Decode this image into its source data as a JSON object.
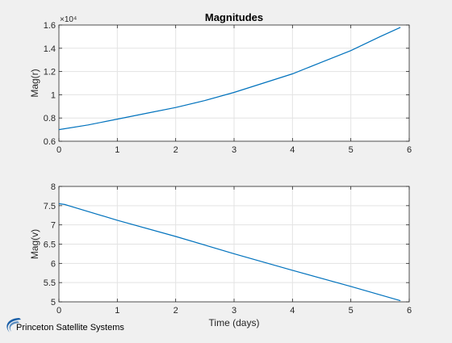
{
  "window": {
    "title": "Magnitudes"
  },
  "branding": {
    "name": "Princeton Satellite Systems",
    "logo_color": "#1a5fa8"
  },
  "chart_data": [
    {
      "type": "line",
      "title": "Magnitudes",
      "xlabel": "",
      "ylabel": "Mag(r)",
      "xlim": [
        0,
        6
      ],
      "ylim": [
        0.6,
        1.6
      ],
      "y_exponent_label": "×10⁴",
      "xticks": [
        0,
        1,
        2,
        3,
        4,
        5,
        6
      ],
      "xtick_labels": [
        "0",
        "1",
        "2",
        "3",
        "4",
        "5",
        "6"
      ],
      "yticks": [
        0.6,
        0.8,
        1.0,
        1.2,
        1.4,
        1.6
      ],
      "ytick_labels": [
        "0.6",
        "0.8",
        "1",
        "1.2",
        "1.4",
        "1.6"
      ],
      "grid": true,
      "line_color": "#0072bd",
      "series": [
        {
          "x": [
            0,
            0.5,
            1,
            1.5,
            2,
            2.5,
            3,
            3.5,
            4,
            4.5,
            5,
            5.5,
            5.85
          ],
          "y": [
            0.7,
            0.74,
            0.79,
            0.84,
            0.89,
            0.95,
            1.02,
            1.1,
            1.18,
            1.28,
            1.38,
            1.5,
            1.58
          ]
        }
      ]
    },
    {
      "type": "line",
      "title": "",
      "xlabel": "Time (days)",
      "ylabel": "Mag(v)",
      "xlim": [
        0,
        6
      ],
      "ylim": [
        5,
        8
      ],
      "xticks": [
        0,
        1,
        2,
        3,
        4,
        5,
        6
      ],
      "xtick_labels": [
        "0",
        "1",
        "2",
        "3",
        "4",
        "5",
        "6"
      ],
      "yticks": [
        5,
        5.5,
        6,
        6.5,
        7,
        7.5,
        8
      ],
      "ytick_labels": [
        "5",
        "5.5",
        "6",
        "6.5",
        "7",
        "7.5",
        "8"
      ],
      "grid": true,
      "line_color": "#0072bd",
      "series": [
        {
          "x": [
            0,
            0.1,
            1,
            2,
            3,
            4,
            5,
            5.85
          ],
          "y": [
            7.55,
            7.53,
            7.12,
            6.7,
            6.25,
            5.82,
            5.4,
            5.03
          ]
        }
      ]
    }
  ]
}
